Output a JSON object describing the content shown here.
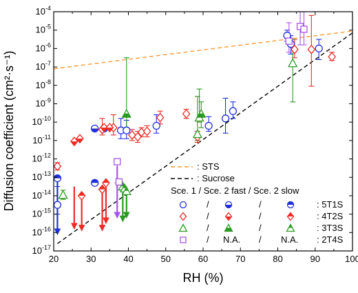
{
  "chart_data": {
    "type": "scatter",
    "title": "",
    "xlabel": "RH (%)",
    "ylabel": "Diffusion coefficient (cm²·s⁻¹)",
    "xlim": [
      20,
      100
    ],
    "ylim_log10": [
      -17,
      -4
    ],
    "xticks": [
      "20",
      "30",
      "40",
      "50",
      "60",
      "70",
      "80",
      "90",
      "100"
    ],
    "xtick_values": [
      20,
      30,
      40,
      50,
      60,
      70,
      80,
      90,
      100
    ],
    "ytick_exponents": [
      -17,
      -16,
      -15,
      -14,
      -13,
      -12,
      -11,
      -10,
      -9,
      -8,
      -7,
      -6,
      -5,
      -4
    ],
    "ytick_base": "10",
    "y_scale": "log",
    "grid": false,
    "legend_position": "bottom-right",
    "reference_lines": [
      {
        "name": ": STS",
        "style": "dashed",
        "color": "#ff9933",
        "x": [
          20,
          100
        ],
        "log10_y": [
          -7.1,
          -5.05
        ]
      },
      {
        "name": ": Sucrose",
        "style": "dashed",
        "color": "#000000",
        "x": [
          21,
          100
        ],
        "log10_y": [
          -16.6,
          -5.15
        ]
      }
    ],
    "legend_header": "Sce. 1 / Sce. 2 fast / Sce. 2 slow",
    "legend_rows": [
      {
        "color": "#1f2fdc",
        "marker": "circle",
        "sep1": "/",
        "col2": "",
        "sep2": "/",
        "col3": "",
        "label": ": 5T1S"
      },
      {
        "color": "#ee2a24",
        "marker": "diamond",
        "sep1": "/",
        "col2": "",
        "sep2": "/",
        "col3": "",
        "label": ": 4T2S"
      },
      {
        "color": "#2a9a22",
        "marker": "triangle",
        "sep1": "/",
        "col2": "",
        "sep2": "/",
        "col3": "",
        "label": ": 3T3S"
      },
      {
        "color": "#a553ea",
        "marker": "square",
        "sep1": "/",
        "col2": "N.A.",
        "sep2": "/",
        "col3": "N.A.",
        "label": ": 2T4S"
      }
    ],
    "series": [
      {
        "name": "5T1S",
        "color": "#1f2fdc",
        "sce1": [
          {
            "x": 21,
            "y": -14.5
          },
          {
            "x": 38,
            "y": -10.45
          },
          {
            "x": 39.5,
            "y": -10.45
          },
          {
            "x": 47.5,
            "y": -10.2
          },
          {
            "x": 61.5,
            "y": -10.2
          },
          {
            "x": 66,
            "y": -9.8
          },
          {
            "x": 68,
            "y": -9.4
          },
          {
            "x": 82.5,
            "y": -5.3
          },
          {
            "x": 83.5,
            "y": -5.75
          },
          {
            "x": 91,
            "y": -6
          }
        ],
        "sce1_err": [
          [
            -15,
            -13.5
          ],
          [
            -10.9,
            -9.8
          ],
          [
            -10.9,
            -9.9
          ],
          [
            -10.6,
            -9.6
          ],
          [
            -10.5,
            -9.7
          ],
          [
            -10.6,
            -8.7
          ],
          [
            -9.8,
            -8.9
          ],
          [
            -5.6,
            -5
          ],
          [
            -6.3,
            -5.3
          ],
          [
            -6.6,
            -5.5
          ]
        ],
        "sce2_fast": [
          {
            "x": 31,
            "y": -10.35
          },
          {
            "x": 33.5,
            "y": -10.35
          }
        ],
        "sce2_slow": [
          {
            "x": 21,
            "y": -13.05
          },
          {
            "x": 31,
            "y": -13.3
          }
        ],
        "arrows": [
          {
            "x": 21,
            "from": -13.2,
            "to": -16.1
          }
        ]
      },
      {
        "name": "4T2S",
        "color": "#ee2a24",
        "sce1": [
          {
            "x": 21,
            "y": -12.4
          },
          {
            "x": 33,
            "y": -10.4
          },
          {
            "x": 36,
            "y": -10.3
          },
          {
            "x": 41,
            "y": -10.7
          },
          {
            "x": 42.5,
            "y": -10.8
          },
          {
            "x": 43.5,
            "y": -10.55
          },
          {
            "x": 45,
            "y": -10.5
          },
          {
            "x": 48.5,
            "y": -9.75
          },
          {
            "x": 55.5,
            "y": -9.55
          },
          {
            "x": 58.5,
            "y": -10.8
          },
          {
            "x": 84.5,
            "y": -6.05
          },
          {
            "x": 89,
            "y": -6.05
          },
          {
            "x": 94.5,
            "y": -6.45
          }
        ],
        "sce1_err": [
          [
            -12.6,
            -12.2
          ],
          [
            -10.7,
            -9.8
          ],
          [
            -10.7,
            -9.6
          ],
          [
            -11,
            -10.4
          ],
          [
            -11.1,
            -10.5
          ],
          [
            -10.8,
            -10.3
          ],
          [
            -10.8,
            -10.2
          ],
          [
            -10.1,
            -9.4
          ],
          [
            -9.8,
            -9.3
          ],
          [
            -11.1,
            -10.5
          ],
          [
            -6.5,
            -5.5
          ],
          [
            -8.05,
            -4.2
          ],
          [
            -6.65,
            -6.2
          ]
        ],
        "sce2_fast": [
          {
            "x": 25.5,
            "y": -11.05
          },
          {
            "x": 27,
            "y": -10.9
          },
          {
            "x": 33.5,
            "y": -10.3
          },
          {
            "x": 35,
            "y": -10.3
          }
        ],
        "sce2_slow": [
          {
            "x": 27.5,
            "y": -14
          },
          {
            "x": 33,
            "y": -13.65
          },
          {
            "x": 34,
            "y": -13.3
          }
        ],
        "arrows": [
          {
            "x": 25.5,
            "from": -13.5,
            "to": -15.8
          },
          {
            "x": 27.5,
            "from": -14.1,
            "to": -15.9
          },
          {
            "x": 33,
            "from": -13.7,
            "to": -15.9
          },
          {
            "x": 34,
            "from": -13.4,
            "to": -15.5
          }
        ]
      },
      {
        "name": "3T3S",
        "color": "#2a9a22",
        "sce1": [
          {
            "x": 22.5,
            "y": -13.95
          },
          {
            "x": 58.5,
            "y": -10.65
          },
          {
            "x": 59,
            "y": -9.75
          },
          {
            "x": 84,
            "y": -6.8
          }
        ],
        "sce1_err": [
          [
            -14.2,
            -13.7
          ],
          [
            -11,
            -8.6
          ],
          [
            -10,
            -8.2
          ],
          [
            -8.9,
            -5.5
          ]
        ],
        "sce2_fast": [
          {
            "x": 39.5,
            "y": -9.55
          },
          {
            "x": 59.5,
            "y": -9.55
          }
        ],
        "sce2_fast_err": [
          [
            -10.5,
            -6.5
          ],
          [
            -10.3,
            -8.9
          ]
        ],
        "sce2_slow": [
          {
            "x": 38.5,
            "y": -13.5
          },
          {
            "x": 39,
            "y": -13.6
          },
          {
            "x": 39.5,
            "y": -13.75
          }
        ],
        "arrows": [
          {
            "x": 38.5,
            "from": -13.4,
            "to": -15.4
          },
          {
            "x": 39.5,
            "from": -13.6,
            "to": -15.2
          }
        ]
      },
      {
        "name": "2T4S",
        "color": "#a553ea",
        "sce1": [
          {
            "x": 37,
            "y": -12.15
          },
          {
            "x": 83,
            "y": -5.6
          },
          {
            "x": 86,
            "y": -4.8
          },
          {
            "x": 87,
            "y": -4.95
          }
        ],
        "sce1_err": [
          [
            -13.3,
            -12
          ],
          [
            -6.2,
            -4.6
          ],
          [
            -5.8,
            -4
          ],
          [
            -5.8,
            -4
          ]
        ],
        "sce2_fast": [],
        "sce2_slow": [
          {
            "x": 37.5,
            "y": -13.25
          }
        ],
        "arrows": [
          {
            "x": 37,
            "from": -12.4,
            "to": -15.2
          }
        ]
      }
    ]
  }
}
